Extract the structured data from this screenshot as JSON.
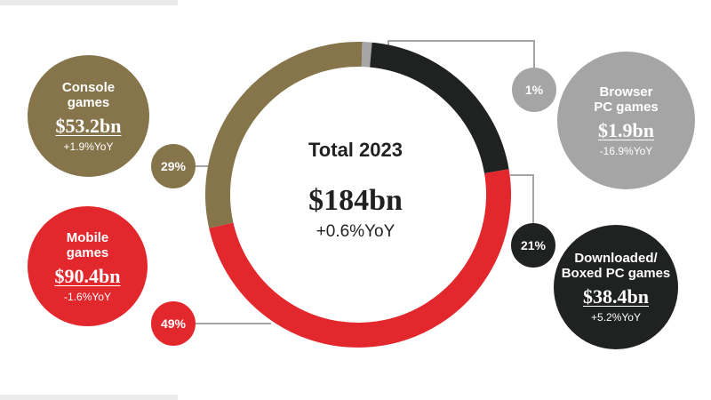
{
  "chart_data": {
    "type": "donut",
    "title": "Total 2023",
    "total": "$184bn",
    "total_yoy": "+0.6%YoY",
    "categories": [
      "Browser PC games",
      "Downloaded/ Boxed PC games",
      "Mobile games",
      "Console games"
    ],
    "values": [
      1.9,
      38.4,
      90.4,
      53.2
    ],
    "segments": [
      {
        "name_line1": "Browser",
        "name_line2": "PC games",
        "share": 1,
        "share_label": "1%",
        "value": 1.9,
        "value_label": "$1.9bn",
        "yoy": "-16.9%YoY",
        "color": "#a5a5a5",
        "text_color": "#ffffff"
      },
      {
        "name_line1": "Downloaded/",
        "name_line2": "Boxed PC games",
        "share": 21,
        "share_label": "21%",
        "value": 38.4,
        "value_label": "$38.4bn",
        "yoy": "+5.2%YoY",
        "color": "#1f2220",
        "text_color": "#ffffff"
      },
      {
        "name_line1": "Mobile",
        "name_line2": "games",
        "share": 49,
        "share_label": "49%",
        "value": 90.4,
        "value_label": "$90.4bn",
        "yoy": "-1.6%YoY",
        "color": "#e2282d",
        "text_color": "#ffffff"
      },
      {
        "name_line1": "Console",
        "name_line2": "games",
        "share": 29,
        "share_label": "29%",
        "value": 53.2,
        "value_label": "$53.2bn",
        "yoy": "+1.9%YoY",
        "color": "#86754b",
        "text_color": "#ffffff"
      }
    ]
  }
}
